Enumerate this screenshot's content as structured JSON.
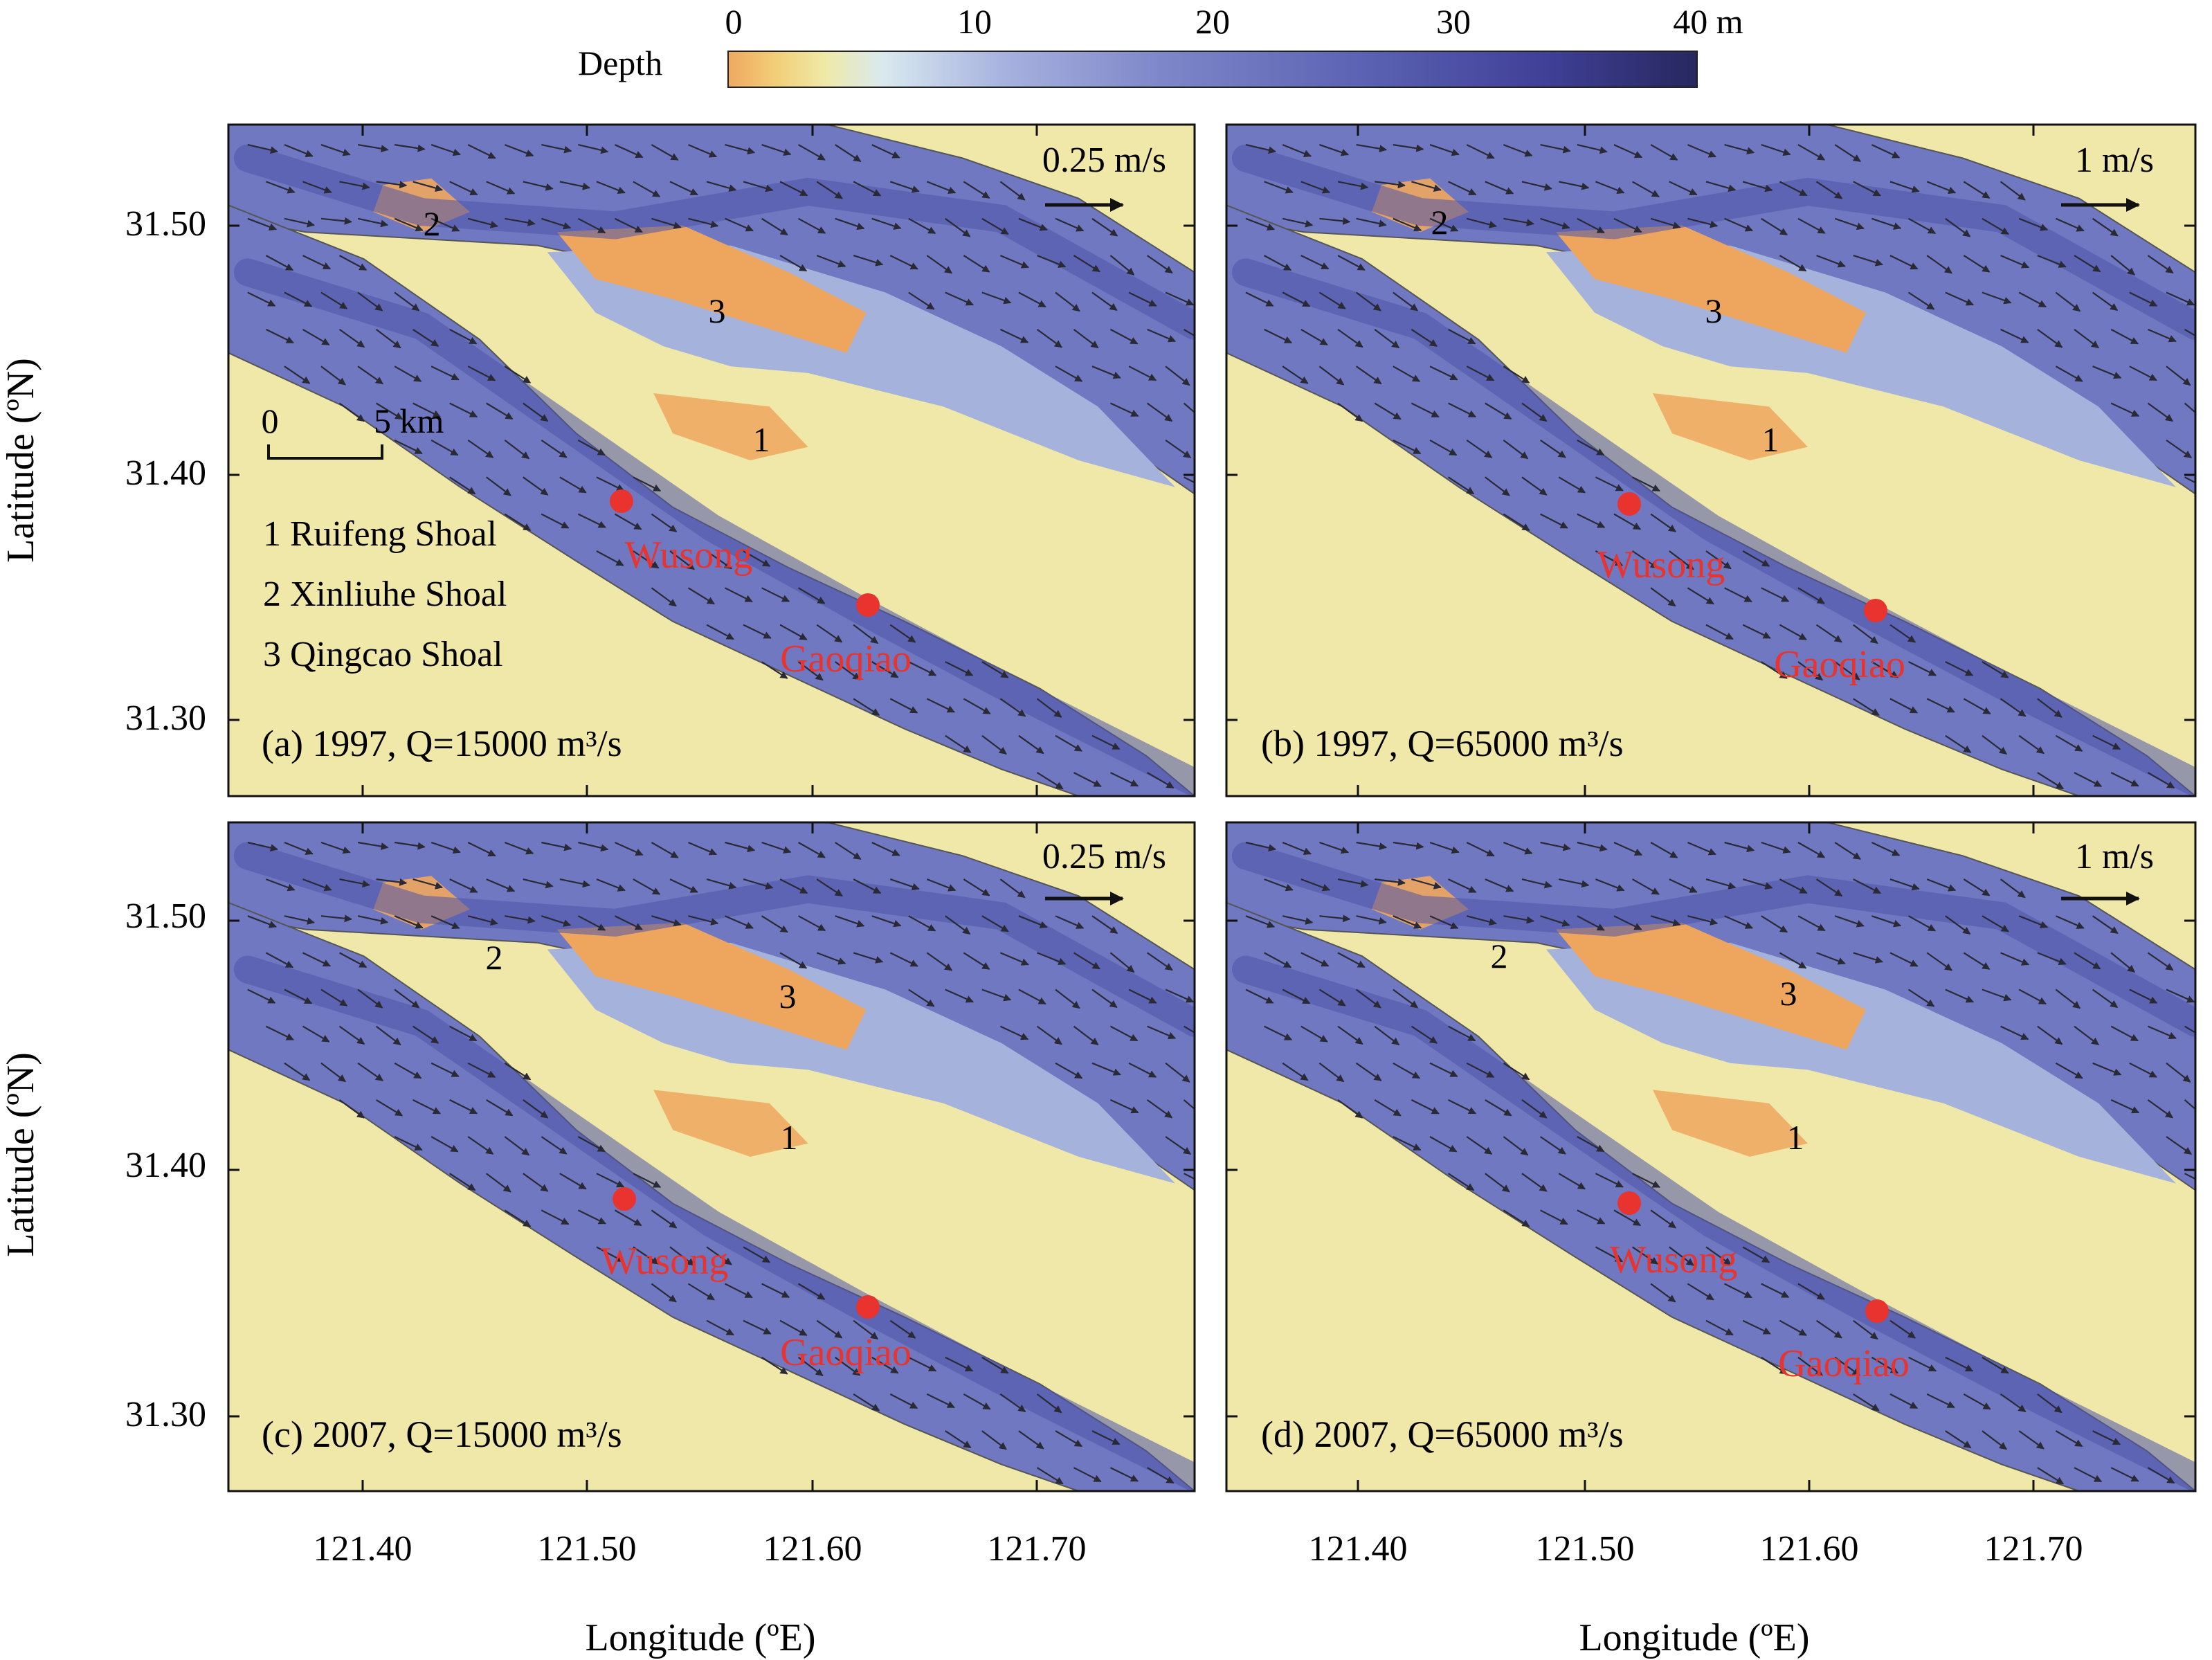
{
  "colorbar": {
    "label": "Depth",
    "ticks": [
      "0",
      "10",
      "20",
      "30",
      "40 m"
    ],
    "colors": [
      "#f0a860",
      "#f2cf78",
      "#efe9a8",
      "#d9e9ef",
      "#a9b3df",
      "#7d86c8",
      "#5c63b4",
      "#3f3f95",
      "#27275f"
    ]
  },
  "axes": {
    "y_ticks": [
      "31.50",
      "31.40",
      "31.30"
    ],
    "x_ticks": [
      "121.40",
      "121.50",
      "121.60",
      "121.70"
    ],
    "y_label": "Latitude (ºN)",
    "x_label": "Longitude (ºE)"
  },
  "legend": {
    "scale_zero": "0",
    "scale_end": "5 km",
    "shoals": [
      "1 Ruifeng Shoal",
      "2 Xinliuhe Shoal",
      "3 Qingcao Shoal"
    ]
  },
  "stations": [
    "Wusong",
    "Gaoqiao"
  ],
  "shoal_numbers": [
    "1",
    "2",
    "3"
  ],
  "panels": [
    {
      "caption": "(a) 1997, Q=15000 m³/s",
      "ref_vector": "0.25 m/s"
    },
    {
      "caption": "(b) 1997, Q=65000 m³/s",
      "ref_vector": "1 m/s"
    },
    {
      "caption": "(c) 2007, Q=15000 m³/s",
      "ref_vector": "0.25 m/s"
    },
    {
      "caption": "(d) 2007, Q=65000 m³/s",
      "ref_vector": "1 m/s"
    }
  ],
  "palette": {
    "land": "#f0e8a8",
    "channel": "#6f78c0",
    "deep": "#4c54a8",
    "mid": "#a5b2dc",
    "shallow": "#d8e6ef",
    "shoal": "#eea65e",
    "station": "#e8332e",
    "arrow": "#2a2a36"
  }
}
